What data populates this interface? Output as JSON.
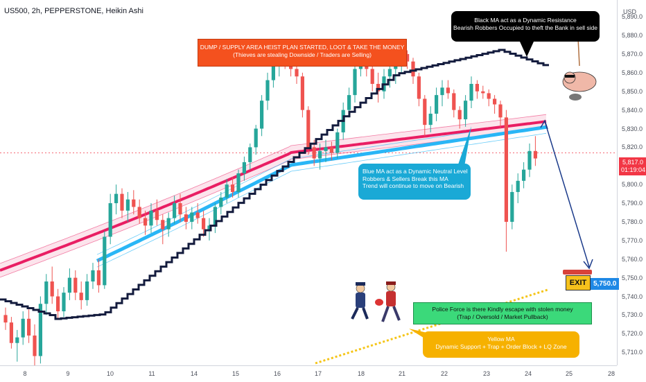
{
  "header": {
    "symbol_title": "US500, 2h, PEPPERSTONE, Heikin Ashi"
  },
  "price_axis": {
    "currency": "USD",
    "current_price_label": "5,817.0",
    "countdown_label": "01:19:04",
    "target_price_label": "5,750.0"
  },
  "exit_label": "EXIT",
  "colors": {
    "up": "#26a69a",
    "down": "#ef5350",
    "black_ma": "#131b3d",
    "red_band": "#e91e63",
    "blue_band": "#29b6f6",
    "yellow_ma": "#f5c518",
    "arrow": "#1a3a8a",
    "current_price": "#f23645",
    "target_badge": "#1e88e5"
  },
  "annotations": {
    "top_orange": [
      "DUMP / SUPPLY AREA HEIST PLAN STARTED, LOOT & TAKE THE MONEY",
      "(Thieves are stealing Downside / Traders are Selling)"
    ],
    "black_box": [
      "Black MA act as a Dynamic Resistance",
      "Bearish Robbers Occupied to theft the Bank in sell side"
    ],
    "blue_box": [
      "Blue MA act as a Dynamic Neutral Level",
      "Robbers & Sellers Break this MA",
      "Trend will continue to move on Bearish"
    ],
    "green_box": [
      "Police Force is there Kindly escape with stolen money",
      "(Trap / Oversold / Market Pullback)"
    ],
    "yellow_box": [
      "Yellow MA",
      "Dynamic Support + Trap + Order Block + LQ Zone"
    ]
  },
  "chart_data": {
    "type": "candlestick",
    "title": "US500, 2h, PEPPERSTONE, Heikin Ashi",
    "y_ticks": [
      5710,
      5720,
      5730,
      5740,
      5750,
      5760,
      5770,
      5780,
      5790,
      5800,
      5810,
      5820,
      5830,
      5840,
      5850,
      5860,
      5870,
      5880,
      5890
    ],
    "y_tick_labels": [
      "5,710.0",
      "5,720.0",
      "5,730.0",
      "5,740.0",
      "5,750.0",
      "5,760.0",
      "5,770.0",
      "5,780.0",
      "5,790.0",
      "5,800.0",
      "5,810.0",
      "5,820.0",
      "5,830.0",
      "5,840.0",
      "5,850.0",
      "5,860.0",
      "5,870.0",
      "5,880.0",
      "5,890.0"
    ],
    "ylim": [
      5703,
      5899
    ],
    "x_tick_labels": [
      "8",
      "9",
      "10",
      "11",
      "14",
      "15",
      "16",
      "17",
      "18",
      "21",
      "22",
      "23",
      "24",
      "25",
      "28"
    ],
    "current_price": 5817.0,
    "target_price": 5750.0,
    "candles": [
      [
        5730,
        5734,
        5722,
        5726
      ],
      [
        5726,
        5729,
        5712,
        5715
      ],
      [
        5715,
        5722,
        5705,
        5718
      ],
      [
        5718,
        5732,
        5714,
        5728
      ],
      [
        5728,
        5733,
        5715,
        5719
      ],
      [
        5719,
        5725,
        5700,
        5708
      ],
      [
        5708,
        5740,
        5704,
        5736
      ],
      [
        5736,
        5752,
        5730,
        5748
      ],
      [
        5748,
        5756,
        5736,
        5740
      ],
      [
        5740,
        5744,
        5728,
        5732
      ],
      [
        5732,
        5745,
        5729,
        5742
      ],
      [
        5742,
        5755,
        5738,
        5750
      ],
      [
        5750,
        5754,
        5738,
        5742
      ],
      [
        5742,
        5748,
        5733,
        5738
      ],
      [
        5738,
        5752,
        5735,
        5748
      ],
      [
        5748,
        5758,
        5744,
        5754
      ],
      [
        5754,
        5760,
        5742,
        5746
      ],
      [
        5746,
        5775,
        5744,
        5772
      ],
      [
        5772,
        5795,
        5768,
        5790
      ],
      [
        5790,
        5800,
        5784,
        5795
      ],
      [
        5795,
        5798,
        5782,
        5786
      ],
      [
        5786,
        5796,
        5780,
        5792
      ],
      [
        5792,
        5797,
        5784,
        5788
      ],
      [
        5788,
        5792,
        5779,
        5782
      ],
      [
        5782,
        5786,
        5773,
        5778
      ],
      [
        5778,
        5790,
        5774,
        5786
      ],
      [
        5786,
        5792,
        5778,
        5781
      ],
      [
        5781,
        5784,
        5768,
        5776
      ],
      [
        5776,
        5785,
        5772,
        5782
      ],
      [
        5782,
        5794,
        5779,
        5790
      ],
      [
        5790,
        5795,
        5780,
        5784
      ],
      [
        5784,
        5788,
        5776,
        5780
      ],
      [
        5780,
        5788,
        5776,
        5785
      ],
      [
        5785,
        5790,
        5779,
        5782
      ],
      [
        5782,
        5786,
        5772,
        5776
      ],
      [
        5776,
        5782,
        5770,
        5778
      ],
      [
        5778,
        5790,
        5774,
        5788
      ],
      [
        5788,
        5796,
        5784,
        5793
      ],
      [
        5793,
        5803,
        5790,
        5800
      ],
      [
        5800,
        5804,
        5793,
        5796
      ],
      [
        5796,
        5808,
        5793,
        5806
      ],
      [
        5806,
        5815,
        5802,
        5812
      ],
      [
        5812,
        5822,
        5808,
        5820
      ],
      [
        5820,
        5832,
        5816,
        5830
      ],
      [
        5830,
        5848,
        5826,
        5845
      ],
      [
        5845,
        5860,
        5840,
        5856
      ],
      [
        5856,
        5868,
        5852,
        5864
      ],
      [
        5864,
        5872,
        5858,
        5868
      ],
      [
        5868,
        5874,
        5862,
        5866
      ],
      [
        5866,
        5870,
        5858,
        5862
      ],
      [
        5862,
        5866,
        5854,
        5858
      ],
      [
        5858,
        5860,
        5836,
        5840
      ],
      [
        5840,
        5842,
        5816,
        5820
      ],
      [
        5820,
        5824,
        5810,
        5814
      ],
      [
        5814,
        5822,
        5808,
        5818
      ],
      [
        5818,
        5824,
        5812,
        5820
      ],
      [
        5820,
        5823,
        5813,
        5817
      ],
      [
        5817,
        5830,
        5814,
        5828
      ],
      [
        5828,
        5844,
        5824,
        5840
      ],
      [
        5840,
        5852,
        5836,
        5848
      ],
      [
        5848,
        5868,
        5844,
        5862
      ],
      [
        5862,
        5876,
        5858,
        5870
      ],
      [
        5870,
        5874,
        5858,
        5862
      ],
      [
        5862,
        5866,
        5850,
        5854
      ],
      [
        5854,
        5860,
        5844,
        5850
      ],
      [
        5850,
        5862,
        5846,
        5858
      ],
      [
        5858,
        5866,
        5852,
        5862
      ],
      [
        5862,
        5868,
        5854,
        5864
      ],
      [
        5864,
        5874,
        5860,
        5870
      ],
      [
        5870,
        5872,
        5862,
        5866
      ],
      [
        5866,
        5868,
        5854,
        5858
      ],
      [
        5858,
        5860,
        5842,
        5846
      ],
      [
        5846,
        5848,
        5826,
        5832
      ],
      [
        5832,
        5842,
        5828,
        5838
      ],
      [
        5838,
        5852,
        5834,
        5848
      ],
      [
        5848,
        5856,
        5842,
        5852
      ],
      [
        5852,
        5856,
        5846,
        5849
      ],
      [
        5849,
        5851,
        5836,
        5840
      ],
      [
        5840,
        5842,
        5830,
        5835
      ],
      [
        5835,
        5848,
        5831,
        5845
      ],
      [
        5845,
        5858,
        5841,
        5854
      ],
      [
        5854,
        5856,
        5846,
        5850
      ],
      [
        5850,
        5853,
        5846,
        5849
      ],
      [
        5849,
        5851,
        5842,
        5846
      ],
      [
        5846,
        5848,
        5838,
        5843
      ],
      [
        5843,
        5845,
        5830,
        5836
      ],
      [
        5836,
        5840,
        5764,
        5780
      ],
      [
        5780,
        5800,
        5776,
        5796
      ],
      [
        5796,
        5806,
        5790,
        5802
      ],
      [
        5802,
        5812,
        5798,
        5808
      ],
      [
        5808,
        5822,
        5804,
        5818
      ],
      [
        5818,
        5826,
        5810,
        5814
      ]
    ]
  }
}
